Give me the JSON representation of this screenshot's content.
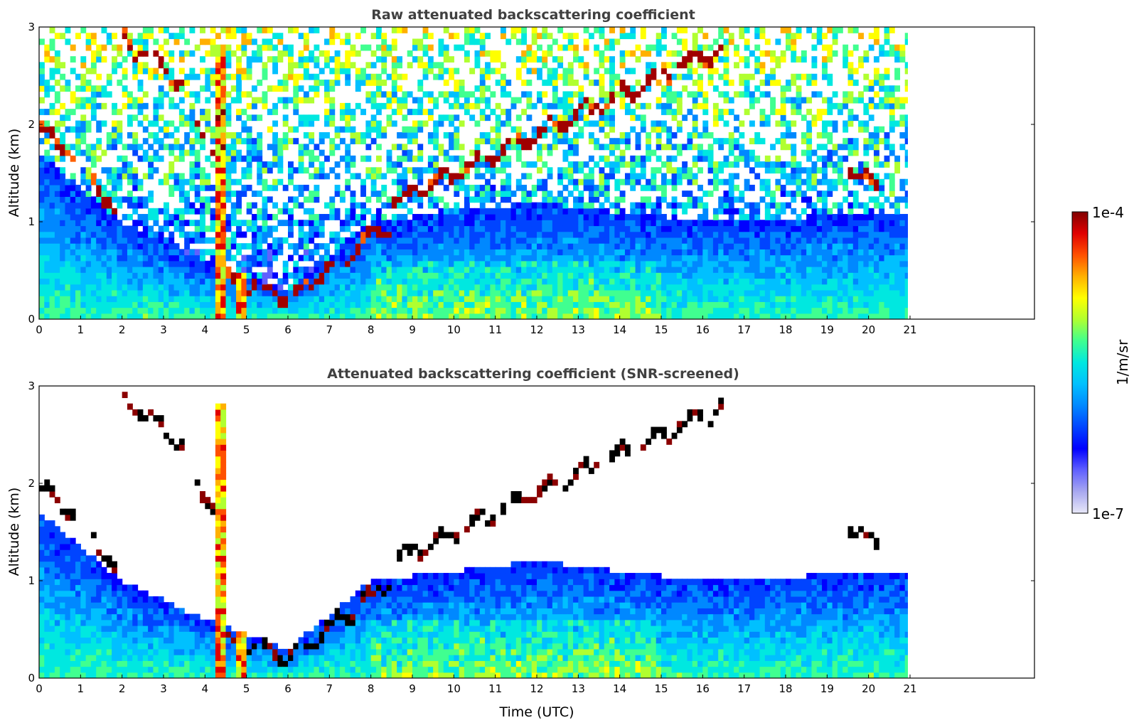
{
  "chart_data": [
    {
      "type": "heatmap",
      "title": "Raw attenuated backscattering coefficient",
      "xlabel": "",
      "ylabel": "Altitude (km)",
      "xlim": [
        0,
        24
      ],
      "ylim": [
        0,
        3
      ],
      "data_xlim": [
        0,
        21
      ],
      "x_ticks": [
        "0",
        "1",
        "2",
        "3",
        "4",
        "5",
        "6",
        "7",
        "8",
        "9",
        "10",
        "11",
        "12",
        "13",
        "14",
        "15",
        "16",
        "17",
        "18",
        "19",
        "20",
        "21"
      ],
      "y_ticks": [
        "0",
        "1",
        "2",
        "3"
      ],
      "features": {
        "cloud_layers": [
          {
            "x": [
              0,
              0.85
            ],
            "altitude": [
              1.95,
              1.7
            ]
          },
          {
            "x": [
              1.25,
              1.9
            ],
            "altitude": [
              1.5,
              1.05
            ]
          },
          {
            "x": [
              2.0,
              3.5
            ],
            "altitude": [
              2.9,
              2.4
            ]
          },
          {
            "x": [
              3.7,
              4.2
            ],
            "altitude": [
              2.0,
              1.8
            ]
          },
          {
            "x": [
              4.3,
              6.2
            ],
            "altitude": [
              0.45,
              0.2
            ]
          },
          {
            "x": [
              6.3,
              8.5
            ],
            "altitude": [
              0.3,
              1.0
            ]
          },
          {
            "x": [
              8.5,
              16.5
            ],
            "altitude": [
              1.2,
              2.8
            ]
          },
          {
            "x": [
              19.5,
              20.3
            ],
            "altitude": [
              1.6,
              1.3
            ]
          }
        ],
        "rain_columns": [
          {
            "x": [
              4.2,
              4.45
            ],
            "altitude": [
              0,
              2.8
            ]
          },
          {
            "x": [
              4.75,
              5.05
            ],
            "altitude": [
              0,
              0.5
            ]
          }
        ],
        "boundary_layer_top": [
          {
            "x": 0,
            "altitude": 1.7
          },
          {
            "x": 2,
            "altitude": 1.0
          },
          {
            "x": 4,
            "altitude": 0.6
          },
          {
            "x": 6,
            "altitude": 0.3
          },
          {
            "x": 8,
            "altitude": 1.0
          },
          {
            "x": 12,
            "altitude": 1.2
          },
          {
            "x": 16,
            "altitude": 1.0
          },
          {
            "x": 21,
            "altitude": 1.1
          }
        ]
      }
    },
    {
      "type": "heatmap",
      "title": "Attenuated backscattering coefficient (SNR-screened)",
      "xlabel": "Time (UTC)",
      "ylabel": "Altitude (km)",
      "xlim": [
        0,
        24
      ],
      "ylim": [
        0,
        3
      ],
      "data_xlim": [
        0,
        21
      ],
      "x_ticks": [
        "0",
        "1",
        "2",
        "3",
        "4",
        "5",
        "6",
        "7",
        "8",
        "9",
        "10",
        "11",
        "12",
        "13",
        "14",
        "15",
        "16",
        "17",
        "18",
        "19",
        "20",
        "21"
      ],
      "y_ticks": [
        "0",
        "1",
        "2",
        "3"
      ]
    }
  ],
  "colorbar": {
    "label": "1/m/sr",
    "min_label": "1e-7",
    "max_label": "1e-4",
    "scale": "log",
    "colors": [
      "#e8e8f8",
      "#a8a8f0",
      "#6060ff",
      "#0000ff",
      "#0044ff",
      "#0088ff",
      "#00c0ff",
      "#00e8e0",
      "#40ff90",
      "#b0ff30",
      "#ffff00",
      "#ffb000",
      "#ff5000",
      "#e00000",
      "#800000"
    ]
  }
}
